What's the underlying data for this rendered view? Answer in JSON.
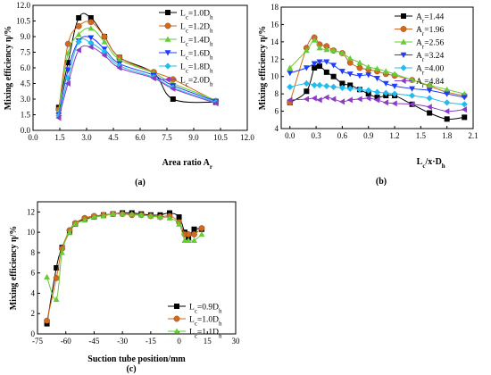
{
  "chart_data": [
    {
      "type": "line",
      "panel_label": "(a)",
      "xlabel": "Area ratio A",
      "xlabel_sub": "r",
      "ylabel": "Mixing efficiency η/%",
      "xlim": [
        0.0,
        12.0
      ],
      "ylim": [
        0.0,
        12.0
      ],
      "xticks": [
        "0.0",
        "1.5",
        "3.0",
        "4.5",
        "6.0",
        "7.5",
        "9.0",
        "10.5",
        "12.0"
      ],
      "yticks": [
        "0.0",
        "1.5",
        "3.0",
        "4.5",
        "6.0",
        "7.5",
        "9.0",
        "10.5",
        "12.0"
      ],
      "legend_position": "top-right",
      "series": [
        {
          "name": "L",
          "name_sub": "c",
          "name_rest": "=1.0D",
          "name_sub2": "h",
          "color": "#000000",
          "marker": "square",
          "points": [
            [
              1.44,
              2.2
            ],
            [
              1.96,
              6.5
            ],
            [
              2.56,
              10.8
            ],
            [
              3.24,
              10.8
            ],
            [
              4.0,
              9.0
            ],
            [
              4.84,
              7.0
            ],
            [
              6.76,
              5.5
            ],
            [
              7.84,
              3.0
            ],
            [
              10.24,
              2.7
            ]
          ]
        },
        {
          "name": "L",
          "name_sub": "c",
          "name_rest": "=1.2D",
          "name_sub2": "h",
          "color": "#d2691e",
          "marker": "circle",
          "points": [
            [
              1.44,
              2.0
            ],
            [
              1.96,
              8.3
            ],
            [
              2.56,
              10.0
            ],
            [
              3.24,
              10.4
            ],
            [
              4.0,
              9.0
            ],
            [
              4.84,
              7.0
            ],
            [
              6.76,
              5.6
            ],
            [
              7.84,
              4.9
            ],
            [
              10.24,
              2.8
            ]
          ]
        },
        {
          "name": "L",
          "name_sub": "c",
          "name_rest": "=1.4D",
          "name_sub2": "h",
          "color": "#66cc33",
          "marker": "triangle-up",
          "points": [
            [
              1.44,
              1.8
            ],
            [
              1.96,
              7.4
            ],
            [
              2.56,
              9.2
            ],
            [
              3.24,
              9.8
            ],
            [
              4.0,
              8.5
            ],
            [
              4.84,
              6.8
            ],
            [
              6.76,
              5.5
            ],
            [
              7.84,
              4.5
            ],
            [
              10.24,
              2.9
            ]
          ]
        },
        {
          "name": "L",
          "name_sub": "c",
          "name_rest": "=1.6D",
          "name_sub2": "h",
          "color": "#1e3cff",
          "marker": "triangle-down",
          "points": [
            [
              1.44,
              1.5
            ],
            [
              1.96,
              5.8
            ],
            [
              2.56,
              8.6
            ],
            [
              3.24,
              8.9
            ],
            [
              4.0,
              7.8
            ],
            [
              4.84,
              6.4
            ],
            [
              6.76,
              5.3
            ],
            [
              7.84,
              4.3
            ],
            [
              10.24,
              2.8
            ]
          ]
        },
        {
          "name": "L",
          "name_sub": "c",
          "name_rest": "=1.8D",
          "name_sub2": "h",
          "color": "#22bbee",
          "marker": "diamond",
          "points": [
            [
              1.44,
              1.4
            ],
            [
              1.96,
              5.0
            ],
            [
              2.56,
              8.5
            ],
            [
              3.24,
              8.4
            ],
            [
              4.0,
              7.5
            ],
            [
              4.84,
              6.2
            ],
            [
              6.76,
              5.1
            ],
            [
              7.84,
              4.1
            ],
            [
              10.24,
              2.7
            ]
          ]
        },
        {
          "name": "L",
          "name_sub": "c",
          "name_rest": "=2.0D",
          "name_sub2": "h",
          "color": "#8a3cc8",
          "marker": "triangle-left",
          "points": [
            [
              1.44,
              1.2
            ],
            [
              1.96,
              4.5
            ],
            [
              2.56,
              7.7
            ],
            [
              3.24,
              8.0
            ],
            [
              4.0,
              7.2
            ],
            [
              4.84,
              6.0
            ],
            [
              6.76,
              5.0
            ],
            [
              7.84,
              4.0
            ],
            [
              10.24,
              2.6
            ]
          ]
        }
      ]
    },
    {
      "type": "line",
      "panel_label": "(b)",
      "xlabel": "L",
      "xlabel_sub": "c",
      "xlabel_rest": "/x·D",
      "xlabel_sub2": "h",
      "ylabel": "Mixing efficiency η/%",
      "xlim": [
        -0.1,
        2.1
      ],
      "ylim": [
        4,
        18
      ],
      "xticks": [
        "0.0",
        "0.3",
        "0.6",
        "0.9",
        "1.2",
        "1.5",
        "1.8",
        "2.1"
      ],
      "yticks": [
        "4",
        "6",
        "8",
        "10",
        "12",
        "14",
        "16",
        "18"
      ],
      "legend_position": "top-right",
      "series": [
        {
          "name": "A",
          "name_sub": "r",
          "name_rest": "=1.44",
          "color": "#000000",
          "marker": "square",
          "points": [
            [
              0.0,
              7.0
            ],
            [
              0.19,
              8.3
            ],
            [
              0.28,
              11.0
            ],
            [
              0.34,
              11.2
            ],
            [
              0.42,
              10.5
            ],
            [
              0.5,
              10.0
            ],
            [
              0.6,
              9.2
            ],
            [
              0.69,
              9.0
            ],
            [
              0.8,
              8.5
            ],
            [
              0.9,
              8.0
            ],
            [
              1.0,
              7.6
            ],
            [
              1.1,
              7.8
            ],
            [
              1.2,
              7.8
            ],
            [
              1.4,
              6.8
            ],
            [
              1.6,
              5.8
            ],
            [
              1.8,
              5.1
            ],
            [
              2.0,
              5.3
            ]
          ]
        },
        {
          "name": "A",
          "name_sub": "r",
          "name_rest": "=1.96",
          "color": "#d2691e",
          "marker": "circle",
          "points": [
            [
              0.0,
              7.0
            ],
            [
              0.19,
              13.3
            ],
            [
              0.28,
              14.5
            ],
            [
              0.34,
              13.7
            ],
            [
              0.42,
              13.5
            ],
            [
              0.5,
              13.0
            ],
            [
              0.6,
              12.7
            ],
            [
              0.69,
              11.6
            ],
            [
              0.8,
              11.0
            ],
            [
              0.9,
              10.8
            ],
            [
              1.0,
              10.6
            ],
            [
              1.1,
              10.3
            ],
            [
              1.2,
              10.1
            ],
            [
              1.4,
              9.6
            ],
            [
              1.6,
              8.9
            ],
            [
              1.8,
              8.2
            ],
            [
              2.0,
              7.8
            ]
          ]
        },
        {
          "name": "A",
          "name_sub": "r",
          "name_rest": "=2.56",
          "color": "#66cc33",
          "marker": "triangle-up",
          "points": [
            [
              0.0,
              11.0
            ],
            [
              0.19,
              13.0
            ],
            [
              0.28,
              14.2
            ],
            [
              0.34,
              13.3
            ],
            [
              0.42,
              13.1
            ],
            [
              0.5,
              13.0
            ],
            [
              0.6,
              12.7
            ],
            [
              0.69,
              12.1
            ],
            [
              0.8,
              11.6
            ],
            [
              0.9,
              11.1
            ],
            [
              1.0,
              10.9
            ],
            [
              1.1,
              10.6
            ],
            [
              1.2,
              10.3
            ],
            [
              1.4,
              9.6
            ],
            [
              1.6,
              9.0
            ],
            [
              1.8,
              8.5
            ],
            [
              2.0,
              8.0
            ]
          ]
        },
        {
          "name": "A",
          "name_sub": "r",
          "name_rest": "=3.24",
          "color": "#1e3cff",
          "marker": "triangle-down",
          "points": [
            [
              0.0,
              10.4
            ],
            [
              0.19,
              11.0
            ],
            [
              0.28,
              11.5
            ],
            [
              0.34,
              11.7
            ],
            [
              0.42,
              11.7
            ],
            [
              0.5,
              11.3
            ],
            [
              0.6,
              10.6
            ],
            [
              0.69,
              10.3
            ],
            [
              0.8,
              10.1
            ],
            [
              0.9,
              10.2
            ],
            [
              1.0,
              9.8
            ],
            [
              1.1,
              9.2
            ],
            [
              1.2,
              8.9
            ],
            [
              1.4,
              8.6
            ],
            [
              1.6,
              8.4
            ],
            [
              1.8,
              8.0
            ],
            [
              2.0,
              7.6
            ]
          ]
        },
        {
          "name": "A",
          "name_sub": "r",
          "name_rest": "=4.00",
          "color": "#22bbee",
          "marker": "diamond",
          "points": [
            [
              0.0,
              8.8
            ],
            [
              0.19,
              9.2
            ],
            [
              0.28,
              9.0
            ],
            [
              0.34,
              9.0
            ],
            [
              0.42,
              8.9
            ],
            [
              0.5,
              8.8
            ],
            [
              0.6,
              8.7
            ],
            [
              0.69,
              8.6
            ],
            [
              0.8,
              8.5
            ],
            [
              0.9,
              8.4
            ],
            [
              1.0,
              8.2
            ],
            [
              1.1,
              8.1
            ],
            [
              1.2,
              8.0
            ],
            [
              1.4,
              7.8
            ],
            [
              1.6,
              7.5
            ],
            [
              1.8,
              7.0
            ],
            [
              2.0,
              6.8
            ]
          ]
        },
        {
          "name": "A",
          "name_sub": "r",
          "name_rest": "=4.84",
          "color": "#8a3cc8",
          "marker": "triangle-left",
          "points": [
            [
              0.0,
              7.3
            ],
            [
              0.19,
              7.4
            ],
            [
              0.28,
              7.5
            ],
            [
              0.34,
              7.3
            ],
            [
              0.42,
              7.6
            ],
            [
              0.5,
              7.4
            ],
            [
              0.6,
              7.1
            ],
            [
              0.69,
              7.3
            ],
            [
              0.8,
              7.4
            ],
            [
              0.9,
              7.5
            ],
            [
              1.0,
              7.3
            ],
            [
              1.1,
              7.0
            ],
            [
              1.2,
              6.9
            ],
            [
              1.4,
              6.8
            ],
            [
              1.6,
              6.5
            ],
            [
              1.8,
              6.0
            ],
            [
              2.0,
              6.2
            ]
          ]
        }
      ]
    },
    {
      "type": "line",
      "panel_label": "(c)",
      "xlabel": "Suction tube position/mm",
      "ylabel": "Mixing efficiency η/%",
      "xlim": [
        -75,
        30
      ],
      "ylim": [
        0,
        13
      ],
      "xticks": [
        "-75",
        "-60",
        "-45",
        "-30",
        "-15",
        "0",
        "15",
        "30"
      ],
      "yticks": [
        "0",
        "2",
        "4",
        "6",
        "8",
        "10",
        "12"
      ],
      "legend_position": "lower-right",
      "series": [
        {
          "name": "L",
          "name_sub": "c",
          "name_rest": "=0.9D",
          "name_sub2": "h",
          "color": "#000000",
          "marker": "square",
          "points": [
            [
              -70,
              1.0
            ],
            [
              -65,
              6.5
            ],
            [
              -62,
              8.5
            ],
            [
              -58,
              10.0
            ],
            [
              -55,
              10.8
            ],
            [
              -50,
              11.3
            ],
            [
              -45,
              11.5
            ],
            [
              -40,
              11.7
            ],
            [
              -35,
              11.8
            ],
            [
              -30,
              11.9
            ],
            [
              -25,
              11.9
            ],
            [
              -20,
              11.8
            ],
            [
              -15,
              11.7
            ],
            [
              -10,
              11.7
            ],
            [
              -5,
              11.9
            ],
            [
              0,
              11.5
            ],
            [
              3,
              10.0
            ],
            [
              5,
              9.5
            ],
            [
              8,
              10.3
            ],
            [
              12,
              10.3
            ]
          ]
        },
        {
          "name": "L",
          "name_sub": "c",
          "name_rest": "=1.0D",
          "name_sub2": "h",
          "color": "#d2691e",
          "marker": "circle",
          "points": [
            [
              -70,
              1.3
            ],
            [
              -65,
              5.5
            ],
            [
              -62,
              8.4
            ],
            [
              -58,
              10.2
            ],
            [
              -55,
              10.9
            ],
            [
              -50,
              11.4
            ],
            [
              -45,
              11.6
            ],
            [
              -40,
              11.7
            ],
            [
              -35,
              11.8
            ],
            [
              -30,
              11.8
            ],
            [
              -25,
              11.7
            ],
            [
              -20,
              11.7
            ],
            [
              -15,
              11.6
            ],
            [
              -10,
              11.5
            ],
            [
              -5,
              11.6
            ],
            [
              0,
              11.0
            ],
            [
              3,
              9.8
            ],
            [
              5,
              9.8
            ],
            [
              8,
              9.8
            ],
            [
              12,
              10.4
            ]
          ]
        },
        {
          "name": "L",
          "name_sub": "c",
          "name_rest": "=1.1D",
          "name_sub2": "h",
          "color": "#66cc33",
          "marker": "triangle-up",
          "points": [
            [
              -70,
              5.6
            ],
            [
              -65,
              3.4
            ],
            [
              -62,
              8.0
            ],
            [
              -58,
              10.0
            ],
            [
              -55,
              10.8
            ],
            [
              -50,
              11.2
            ],
            [
              -45,
              11.5
            ],
            [
              -40,
              11.6
            ],
            [
              -35,
              11.8
            ],
            [
              -30,
              11.8
            ],
            [
              -25,
              11.8
            ],
            [
              -20,
              11.7
            ],
            [
              -15,
              11.6
            ],
            [
              -10,
              11.5
            ],
            [
              -5,
              11.4
            ],
            [
              0,
              10.8
            ],
            [
              3,
              9.2
            ],
            [
              5,
              9.2
            ],
            [
              8,
              9.2
            ],
            [
              12,
              9.8
            ]
          ]
        }
      ]
    }
  ]
}
